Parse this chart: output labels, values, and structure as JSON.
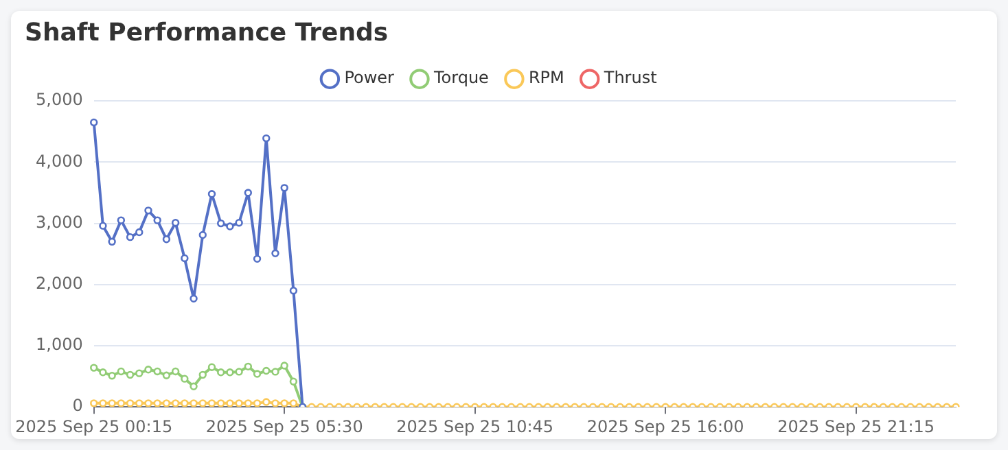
{
  "chart_data": {
    "type": "line",
    "title": "Shaft Performance Trends",
    "categories": [
      "2025 Sep 25 00:15",
      null,
      null,
      null,
      null,
      null,
      null,
      null,
      null,
      null,
      null,
      null,
      null,
      null,
      null,
      null,
      null,
      null,
      null,
      null,
      null,
      "2025 Sep 25 05:30",
      null,
      null,
      null,
      null,
      null,
      null,
      null,
      null,
      null,
      null,
      null,
      null,
      null,
      null,
      null,
      null,
      null,
      null,
      null,
      null,
      "2025 Sep 25 10:45",
      null,
      null,
      null,
      null,
      null,
      null,
      null,
      null,
      null,
      null,
      null,
      null,
      null,
      null,
      null,
      null,
      null,
      null,
      null,
      null,
      "2025 Sep 25 16:00",
      null,
      null,
      null,
      null,
      null,
      null,
      null,
      null,
      null,
      null,
      null,
      null,
      null,
      null,
      null,
      null,
      null,
      null,
      null,
      null,
      "2025 Sep 25 21:15",
      null,
      null,
      null,
      null,
      null,
      null,
      null,
      null,
      null,
      null,
      null
    ],
    "series": [
      {
        "name": "Power",
        "color": "#5470c6",
        "values": [
          4650,
          2960,
          2700,
          3050,
          2775,
          2855,
          3210,
          3050,
          2740,
          3010,
          2430,
          1770,
          2810,
          3480,
          3000,
          2950,
          3010,
          3500,
          2420,
          4390,
          2510,
          3580,
          1900,
          0,
          null,
          null,
          null,
          null,
          null,
          null,
          null,
          null,
          null,
          null,
          null,
          null,
          null,
          null,
          null,
          null,
          null,
          null,
          null,
          null,
          null,
          null,
          null,
          null,
          null,
          null,
          null,
          null,
          null,
          null,
          null,
          null,
          null,
          null,
          null,
          null,
          null,
          null,
          null,
          null,
          null,
          null,
          null,
          null,
          null,
          null,
          null,
          null,
          null,
          null,
          null,
          null,
          null,
          null,
          null,
          null,
          null,
          null,
          null,
          null,
          null,
          null,
          null,
          null,
          null,
          null,
          null,
          null,
          null,
          null,
          null,
          null
        ]
      },
      {
        "name": "Torque",
        "color": "#91cc75",
        "values": [
          640,
          565,
          510,
          580,
          525,
          550,
          610,
          580,
          515,
          580,
          460,
          335,
          525,
          650,
          565,
          565,
          575,
          660,
          540,
          590,
          575,
          675,
          415,
          0,
          null,
          null,
          null,
          null,
          null,
          null,
          null,
          null,
          null,
          null,
          null,
          null,
          null,
          null,
          null,
          null,
          null,
          null,
          null,
          null,
          null,
          null,
          null,
          null,
          null,
          null,
          null,
          null,
          null,
          null,
          null,
          null,
          null,
          null,
          null,
          null,
          null,
          null,
          null,
          null,
          null,
          null,
          null,
          null,
          null,
          null,
          null,
          null,
          null,
          null,
          null,
          null,
          null,
          null,
          null,
          null,
          null,
          null,
          null,
          null,
          null,
          null,
          null,
          null,
          null,
          null,
          null,
          null,
          null,
          null,
          null,
          null
        ]
      },
      {
        "name": "RPM",
        "color": "#fac858",
        "values": [
          60,
          60,
          60,
          60,
          60,
          60,
          60,
          60,
          60,
          60,
          60,
          60,
          60,
          60,
          60,
          60,
          60,
          60,
          60,
          80,
          60,
          60,
          60,
          0,
          0,
          0,
          0,
          0,
          0,
          0,
          0,
          0,
          0,
          0,
          0,
          0,
          0,
          0,
          0,
          0,
          0,
          0,
          0,
          0,
          0,
          0,
          0,
          0,
          0,
          0,
          0,
          0,
          0,
          0,
          0,
          0,
          0,
          0,
          0,
          0,
          0,
          0,
          0,
          0,
          0,
          0,
          0,
          0,
          0,
          0,
          0,
          0,
          0,
          0,
          0,
          0,
          0,
          0,
          0,
          0,
          0,
          0,
          0,
          0,
          0,
          0,
          0,
          0,
          0,
          0,
          0,
          0,
          0,
          0,
          0,
          0
        ]
      },
      {
        "name": "Thrust",
        "color": "#ee6666",
        "values": [
          null,
          null,
          null,
          null,
          null,
          null,
          null,
          null,
          null,
          null,
          null,
          null,
          null,
          null,
          null,
          null,
          null,
          null,
          null,
          null,
          null,
          null,
          null,
          null,
          null,
          null,
          null,
          null,
          null,
          null,
          null,
          null,
          null,
          null,
          null,
          null,
          null,
          null,
          null,
          null,
          null,
          null,
          null,
          null,
          null,
          null,
          null,
          null,
          null,
          null,
          null,
          null,
          null,
          null,
          null,
          null,
          null,
          null,
          null,
          null,
          null,
          null,
          null,
          null,
          null,
          null,
          null,
          null,
          null,
          null,
          null,
          null,
          null,
          null,
          null,
          null,
          null,
          null,
          null,
          null,
          null,
          null,
          null,
          null,
          null,
          null,
          null,
          null,
          null,
          null,
          null,
          null,
          null,
          null,
          null,
          null
        ]
      }
    ],
    "ylim": [
      0,
      5000
    ],
    "yticks": [
      0,
      {
        "value": 1000,
        "label": "1,000"
      },
      {
        "value": 2000,
        "label": "2,000"
      },
      {
        "value": 3000,
        "label": "3,000"
      },
      {
        "value": 4000,
        "label": "4,000"
      },
      {
        "value": 5000,
        "label": "5,000"
      }
    ],
    "grid": "y",
    "legend": "top",
    "marker": "circle",
    "line_style": "solid"
  }
}
